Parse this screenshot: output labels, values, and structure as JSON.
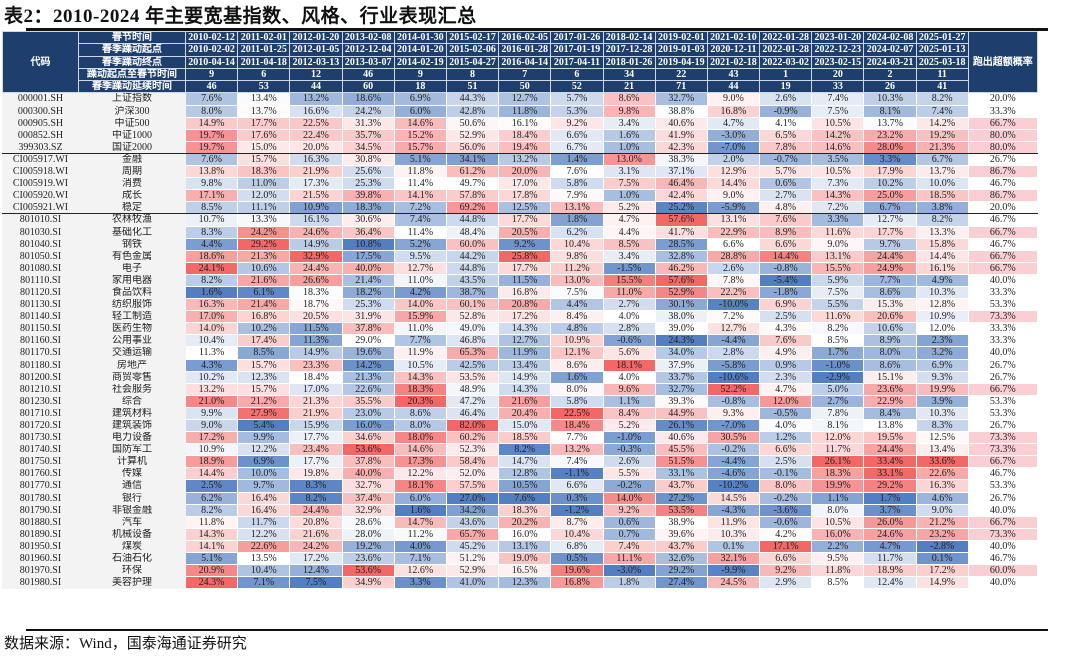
{
  "title": "表2：2010-2024 年主要宽基指数、风格、行业表现汇总",
  "source": "数据来源：Wind，国泰海通证券研究",
  "colors": {
    "header_bg": "#1e3f6e",
    "positive": "#f0605f",
    "negative": "#4a78bf",
    "prob_highlight": "#f9cfd3"
  },
  "header": {
    "code_label": "代码",
    "prob_label": "跑出超额概率",
    "row_labels": [
      "春节时间",
      "春季躁动起点",
      "春季躁动终点",
      "躁动起点至春节时间",
      "春季躁动延续时间"
    ],
    "spring_festival": [
      "2010-02-12",
      "2011-02-01",
      "2012-01-20",
      "2013-02-08",
      "2014-01-30",
      "2015-02-17",
      "2016-02-05",
      "2017-01-26",
      "2018-02-14",
      "2019-02-01",
      "2021-02-10",
      "2022-01-28",
      "2023-01-20",
      "2024-02-08",
      "2025-01-27"
    ],
    "rally_start": [
      "2010-02-02",
      "2011-01-25",
      "2012-01-05",
      "2012-12-04",
      "2014-01-20",
      "2015-02-06",
      "2016-01-28",
      "2017-01-19",
      "2017-12-28",
      "2019-01-03",
      "2020-12-11",
      "2022-01-28",
      "2022-12-23",
      "2024-02-07",
      "2025-01-13"
    ],
    "rally_end": [
      "2010-04-14",
      "2011-04-18",
      "2012-03-13",
      "2013-03-07",
      "2014-02-19",
      "2015-04-27",
      "2016-04-14",
      "2017-04-11",
      "2018-01-26",
      "2019-04-19",
      "2021-02-18",
      "2022-03-02",
      "2023-02-15",
      "2024-03-21",
      "2025-03-18"
    ],
    "days_start_to_festival": [
      "9",
      "6",
      "12",
      "46",
      "9",
      "8",
      "7",
      "6",
      "34",
      "22",
      "43",
      "1",
      "20",
      "2",
      "11"
    ],
    "rally_duration": [
      "46",
      "53",
      "44",
      "60",
      "18",
      "51",
      "50",
      "52",
      "21",
      "71",
      "44",
      "19",
      "33",
      "26",
      "41"
    ]
  },
  "rows": [
    {
      "code": "000001.SH",
      "name": "上证指数",
      "values": [
        7.6,
        13.4,
        13.2,
        18.6,
        6.9,
        44.3,
        12.7,
        5.7,
        8.6,
        32.7,
        9.0,
        2.6,
        7.4,
        10.3,
        8.2
      ],
      "prob": "20.0%"
    },
    {
      "code": "000300.SH",
      "name": "沪深300",
      "values": [
        8.0,
        13.7,
        16.6,
        24.2,
        6.0,
        42.8,
        11.8,
        5.3,
        9.8,
        38.8,
        16.8,
        -0.9,
        7.5,
        8.1,
        7.4
      ],
      "prob": "33.3%"
    },
    {
      "code": "000905.SH",
      "name": "中证500",
      "values": [
        14.9,
        17.7,
        22.5,
        31.3,
        14.6,
        50.6,
        16.1,
        9.2,
        3.4,
        40.6,
        4.7,
        4.1,
        10.5,
        13.7,
        14.2
      ],
      "prob": "66.7%"
    },
    {
      "code": "000852.SH",
      "name": "中证1000",
      "values": [
        19.7,
        17.6,
        22.4,
        35.7,
        15.2,
        52.9,
        18.4,
        6.6,
        1.6,
        41.9,
        -3.0,
        6.5,
        14.2,
        23.2,
        19.2
      ],
      "prob": "80.0%"
    },
    {
      "code": "399303.SZ",
      "name": "国证2000",
      "values": [
        19.7,
        15.0,
        20.0,
        34.5,
        15.7,
        56.0,
        19.4,
        6.7,
        1.0,
        42.3,
        -7.0,
        7.8,
        14.6,
        28.0,
        21.3
      ],
      "prob": "80.0%",
      "sep": true
    },
    {
      "code": "CI005917.WI",
      "name": "金融",
      "values": [
        7.6,
        15.7,
        16.3,
        30.8,
        5.1,
        34.1,
        13.2,
        1.4,
        13.0,
        38.3,
        2.0,
        -0.7,
        3.5,
        3.3,
        6.7
      ],
      "prob": "26.7%"
    },
    {
      "code": "CI005918.WI",
      "name": "周期",
      "values": [
        13.8,
        18.3,
        21.9,
        25.6,
        11.8,
        61.2,
        20.0,
        7.6,
        3.1,
        37.1,
        12.9,
        5.7,
        10.5,
        17.9,
        13.7
      ],
      "prob": "86.7%"
    },
    {
      "code": "CI005919.WI",
      "name": "消费",
      "values": [
        9.8,
        11.0,
        17.3,
        25.3,
        11.4,
        49.7,
        17.0,
        5.8,
        7.5,
        46.4,
        14.4,
        0.6,
        7.3,
        10.2,
        10.0
      ],
      "prob": "46.7%"
    },
    {
      "code": "CI005920.WI",
      "name": "成长",
      "values": [
        17.1,
        12.0,
        21.5,
        39.8,
        14.1,
        57.8,
        17.8,
        7.9,
        1.0,
        42.4,
        9.0,
        2.7,
        14.3,
        25.0,
        18.5
      ],
      "prob": "86.7%"
    },
    {
      "code": "CI005921.WI",
      "name": "稳定",
      "values": [
        8.5,
        11.1,
        10.9,
        18.3,
        7.2,
        69.2,
        12.5,
        13.1,
        5.2,
        25.2,
        -5.9,
        4.8,
        7.2,
        6.7,
        3.8
      ],
      "prob": "20.0%",
      "sep": true
    },
    {
      "code": "801010.SI",
      "name": "农林牧渔",
      "values": [
        10.7,
        13.3,
        16.1,
        30.6,
        7.4,
        44.8,
        17.7,
        1.8,
        4.7,
        57.6,
        13.1,
        7.6,
        3.3,
        12.7,
        8.2
      ],
      "prob": "46.7%"
    },
    {
      "code": "801030.SI",
      "name": "基础化工",
      "values": [
        8.3,
        24.2,
        24.6,
        36.4,
        11.4,
        48.4,
        20.5,
        6.2,
        4.4,
        41.7,
        22.9,
        8.9,
        11.6,
        17.7,
        13.3
      ],
      "prob": "66.7%"
    },
    {
      "code": "801040.SI",
      "name": "钢铁",
      "values": [
        4.4,
        29.2,
        14.9,
        10.8,
        5.2,
        60.0,
        9.2,
        10.4,
        8.5,
        28.5,
        6.6,
        6.6,
        9.0,
        9.7,
        15.8
      ],
      "prob": "46.7%"
    },
    {
      "code": "801050.SI",
      "name": "有色金属",
      "values": [
        18.6,
        21.3,
        32.9,
        17.5,
        9.5,
        44.2,
        25.8,
        9.8,
        3.4,
        32.8,
        28.8,
        14.4,
        13.1,
        24.4,
        14.4
      ],
      "prob": "66.7%"
    },
    {
      "code": "801080.SI",
      "name": "电子",
      "values": [
        24.1,
        10.6,
        24.4,
        40.0,
        12.7,
        44.8,
        17.7,
        11.2,
        -1.5,
        46.2,
        2.6,
        -0.8,
        15.5,
        24.9,
        16.1
      ],
      "prob": "66.7%"
    },
    {
      "code": "801110.SI",
      "name": "家用电器",
      "values": [
        8.2,
        21.6,
        26.6,
        21.4,
        11.0,
        43.5,
        11.5,
        13.0,
        15.5,
        57.6,
        7.8,
        -5.4,
        5.9,
        7.7,
        4.9
      ],
      "prob": "40.0%"
    },
    {
      "code": "801120.SI",
      "name": "食品饮料",
      "values": [
        1.6,
        6.1,
        18.3,
        18.2,
        4.2,
        38.7,
        16.8,
        7.5,
        11.0,
        52.9,
        22.2,
        -1.8,
        7.5,
        8.6,
        10.3
      ],
      "prob": "33.3%"
    },
    {
      "code": "801130.SI",
      "name": "纺织服饰",
      "values": [
        16.3,
        21.4,
        18.7,
        25.3,
        14.0,
        60.1,
        20.8,
        4.4,
        2.7,
        30.1,
        -10.0,
        6.9,
        5.5,
        15.3,
        12.8
      ],
      "prob": "53.3%"
    },
    {
      "code": "801140.SI",
      "name": "轻工制造",
      "values": [
        17.0,
        16.8,
        20.5,
        31.9,
        15.9,
        52.8,
        17.2,
        8.4,
        4.0,
        38.0,
        7.2,
        2.5,
        11.6,
        20.6,
        10.9
      ],
      "prob": "73.3%"
    },
    {
      "code": "801150.SI",
      "name": "医药生物",
      "values": [
        14.0,
        10.2,
        11.5,
        37.8,
        11.0,
        49.0,
        14.3,
        4.8,
        2.8,
        39.0,
        12.7,
        4.3,
        8.2,
        10.6,
        12.0
      ],
      "prob": "33.3%"
    },
    {
      "code": "801160.SI",
      "name": "公用事业",
      "values": [
        10.4,
        17.4,
        11.3,
        29.0,
        7.7,
        46.8,
        12.7,
        10.9,
        -0.6,
        24.3,
        -4.4,
        7.6,
        8.5,
        8.9,
        2.3
      ],
      "prob": "33.3%"
    },
    {
      "code": "801170.SI",
      "name": "交通运输",
      "values": [
        11.3,
        8.5,
        14.9,
        19.6,
        11.9,
        65.3,
        11.9,
        12.1,
        5.6,
        34.0,
        2.8,
        4.9,
        1.7,
        8.0,
        3.2
      ],
      "prob": "40.0%"
    },
    {
      "code": "801180.SI",
      "name": "房地产",
      "values": [
        4.3,
        15.7,
        23.3,
        14.2,
        10.5,
        42.5,
        13.4,
        8.6,
        18.1,
        37.9,
        -5.8,
        0.9,
        -1.0,
        8.6,
        6.9
      ],
      "prob": "26.7%"
    },
    {
      "code": "801200.SI",
      "name": "商贸零售",
      "values": [
        10.2,
        12.3,
        18.4,
        21.3,
        14.3,
        53.5,
        14.9,
        1.6,
        4.0,
        33.7,
        -10.6,
        2.3,
        -2.9,
        15.1,
        9.3
      ],
      "prob": "26.7%"
    },
    {
      "code": "801210.SI",
      "name": "社会服务",
      "values": [
        13.2,
        15.7,
        17.0,
        22.6,
        18.3,
        48.9,
        14.3,
        8.0,
        9.6,
        32.7,
        52.2,
        4.7,
        5.0,
        23.6,
        19.9
      ],
      "prob": "66.7%"
    },
    {
      "code": "801230.SI",
      "name": "综合",
      "values": [
        21.0,
        21.2,
        21.3,
        35.5,
        20.3,
        47.2,
        21.6,
        5.8,
        1.1,
        39.3,
        -0.8,
        12.0,
        2.7,
        22.9,
        3.9
      ],
      "prob": "53.3%"
    },
    {
      "code": "801710.SI",
      "name": "建筑材料",
      "values": [
        9.9,
        27.9,
        21.9,
        23.0,
        8.6,
        46.4,
        20.4,
        22.5,
        8.4,
        44.9,
        9.3,
        -0.5,
        7.8,
        8.4,
        10.3
      ],
      "prob": "53.3%"
    },
    {
      "code": "801720.SI",
      "name": "建筑装饰",
      "values": [
        9.0,
        5.4,
        15.9,
        16.0,
        8.0,
        82.0,
        15.0,
        18.4,
        5.2,
        26.1,
        -7.0,
        4.0,
        8.1,
        13.8,
        8.3
      ],
      "prob": "26.7%"
    },
    {
      "code": "801730.SI",
      "name": "电力设备",
      "values": [
        17.2,
        9.9,
        17.7,
        34.6,
        18.0,
        60.2,
        18.5,
        7.7,
        -1.0,
        40.6,
        30.5,
        1.2,
        12.0,
        19.5,
        12.5
      ],
      "prob": "73.3%"
    },
    {
      "code": "801740.SI",
      "name": "国防军工",
      "values": [
        10.9,
        12.2,
        23.4,
        53.6,
        14.6,
        52.3,
        8.2,
        13.2,
        -0.3,
        45.5,
        -0.2,
        6.6,
        11.7,
        24.4,
        13.4
      ],
      "prob": "73.3%"
    },
    {
      "code": "801750.SI",
      "name": "计算机",
      "values": [
        18.9,
        6.9,
        17.7,
        37.8,
        17.3,
        58.4,
        14.7,
        7.4,
        2.6,
        51.5,
        -4.4,
        2.5,
        26.1,
        33.4,
        33.6
      ],
      "prob": "66.7%"
    },
    {
      "code": "801760.SI",
      "name": "传媒",
      "values": [
        14.4,
        10.0,
        19.8,
        40.0,
        12.2,
        52.0,
        12.8,
        -1.1,
        5.5,
        33.1,
        -4.6,
        -0.1,
        18.3,
        33.1,
        22.6
      ],
      "prob": "46.7%"
    },
    {
      "code": "801770.SI",
      "name": "通信",
      "values": [
        2.5,
        9.7,
        8.3,
        32.7,
        18.1,
        57.5,
        10.5,
        6.6,
        -0.2,
        43.7,
        -10.2,
        8.0,
        19.9,
        29.2,
        16.3
      ],
      "prob": "53.3%"
    },
    {
      "code": "801780.SI",
      "name": "银行",
      "values": [
        6.2,
        16.4,
        8.2,
        37.4,
        6.0,
        27.0,
        7.6,
        0.3,
        14.0,
        27.2,
        14.5,
        -0.2,
        1.1,
        1.7,
        4.6
      ],
      "prob": "26.7%"
    },
    {
      "code": "801790.SI",
      "name": "非银金融",
      "values": [
        8.2,
        16.4,
        24.4,
        32.9,
        1.6,
        34.2,
        18.3,
        -1.2,
        9.2,
        53.5,
        -4.3,
        -3.6,
        8.0,
        3.7,
        9.0
      ],
      "prob": "40.0%"
    },
    {
      "code": "801880.SI",
      "name": "汽车",
      "values": [
        11.8,
        11.7,
        20.8,
        28.6,
        14.7,
        43.6,
        20.2,
        8.7,
        0.6,
        38.9,
        11.9,
        -0.6,
        10.5,
        26.0,
        21.2
      ],
      "prob": "66.7%"
    },
    {
      "code": "801890.SI",
      "name": "机械设备",
      "values": [
        14.3,
        12.2,
        21.6,
        28.0,
        11.2,
        65.7,
        16.0,
        10.4,
        0.7,
        39.6,
        10.3,
        4.2,
        16.0,
        24.6,
        23.2
      ],
      "prob": "73.3%"
    },
    {
      "code": "801950.SI",
      "name": "煤炭",
      "values": [
        14.1,
        22.6,
        24.2,
        19.2,
        4.0,
        45.2,
        13.1,
        6.8,
        7.4,
        43.7,
        0.1,
        17.1,
        2.2,
        4.7,
        -2.8
      ],
      "prob": "40.0%"
    },
    {
      "code": "801960.SI",
      "name": "石油石化",
      "values": [
        5.1,
        13.5,
        17.2,
        23.6,
        7.1,
        51.2,
        19.0,
        0.5,
        11.1,
        32.6,
        32.1,
        6.6,
        9.5,
        11.7,
        0.1
      ],
      "prob": "46.7%"
    },
    {
      "code": "801970.SI",
      "name": "环保",
      "values": [
        20.9,
        10.4,
        12.4,
        53.6,
        12.6,
        52.9,
        16.5,
        19.6,
        -3.0,
        29.2,
        -9.9,
        9.2,
        11.8,
        18.9,
        17.2
      ],
      "prob": "60.0%"
    },
    {
      "code": "801980.SI",
      "name": "美容护理",
      "values": [
        24.3,
        7.1,
        7.5,
        34.9,
        3.3,
        41.0,
        12.3,
        16.8,
        1.8,
        27.4,
        24.5,
        2.9,
        8.5,
        12.4,
        14.9
      ],
      "prob": "40.0%"
    }
  ]
}
